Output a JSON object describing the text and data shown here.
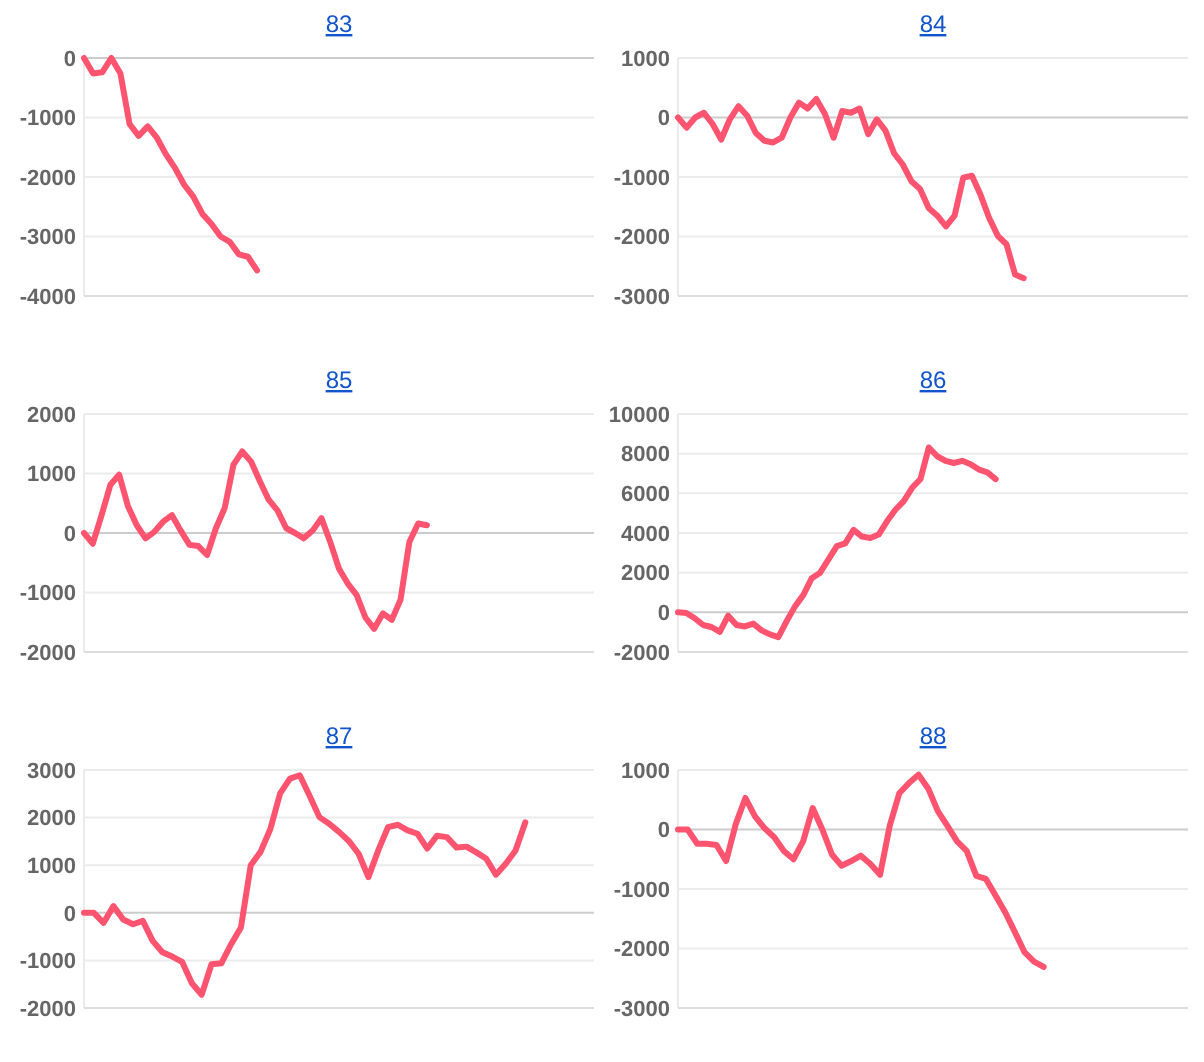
{
  "chart_data": [
    {
      "type": "line",
      "title": "83",
      "categories": [
        null,
        null,
        null,
        null,
        null,
        null,
        null,
        null,
        null,
        null,
        null,
        null,
        null,
        null,
        null,
        null,
        null,
        null,
        null,
        null,
        null,
        null,
        null,
        null,
        null,
        null,
        null,
        null,
        null,
        null,
        null,
        null,
        null,
        null,
        null,
        null,
        null,
        null,
        null,
        null,
        null,
        null,
        null,
        null,
        null,
        null,
        null,
        null,
        null,
        null,
        null,
        null,
        null,
        null,
        null,
        null,
        null
      ],
      "ylim": [
        -4000,
        0
      ],
      "yticks": [
        0,
        -1000,
        -2000,
        -3000,
        -4000
      ],
      "tick_labels": "y",
      "grid": "y",
      "series": [
        {
          "color": "#fe5470",
          "values": [
            0,
            -260,
            -240,
            0,
            -260,
            -1110,
            -1310,
            -1150,
            -1340,
            -1620,
            -1850,
            -2130,
            -2330,
            -2620,
            -2790,
            -3000,
            -3090,
            -3300,
            -3340,
            -3570,
            null,
            null,
            null,
            null,
            null,
            null,
            null,
            null,
            null,
            null,
            null,
            null,
            null,
            null,
            null,
            null,
            null,
            null,
            null,
            null,
            null,
            null,
            null,
            null,
            null,
            null,
            null,
            null,
            null,
            null,
            null,
            null,
            null,
            null,
            null,
            null,
            null
          ]
        }
      ]
    },
    {
      "type": "line",
      "title": "84",
      "categories": [
        null,
        null,
        null,
        null,
        null,
        null,
        null,
        null,
        null,
        null,
        null,
        null,
        null,
        null,
        null,
        null,
        null,
        null,
        null,
        null,
        null,
        null,
        null,
        null,
        null,
        null,
        null,
        null,
        null,
        null,
        null,
        null,
        null,
        null,
        null,
        null,
        null,
        null,
        null,
        null,
        null,
        null,
        null,
        null,
        null,
        null,
        null,
        null,
        null,
        null,
        null,
        null,
        null,
        null,
        null,
        null,
        null,
        null,
        null,
        null
      ],
      "ylim": [
        -3000,
        1000
      ],
      "yticks": [
        1000,
        0,
        -1000,
        -2000,
        -3000
      ],
      "tick_labels": "y",
      "grid": "y",
      "series": [
        {
          "color": "#fe5470",
          "values": [
            0,
            -170,
            0,
            80,
            -110,
            -370,
            -30,
            190,
            30,
            -260,
            -390,
            -420,
            -340,
            0,
            250,
            150,
            310,
            60,
            -340,
            110,
            80,
            150,
            -280,
            -30,
            -220,
            -600,
            -790,
            -1070,
            -1200,
            -1520,
            -1650,
            -1830,
            -1650,
            -1010,
            -980,
            -1300,
            -1690,
            -1990,
            -2130,
            -2640,
            -2700,
            null,
            null,
            null,
            null,
            null,
            null,
            null,
            null,
            null,
            null,
            null,
            null,
            null,
            null,
            null,
            null,
            null,
            null,
            null
          ]
        }
      ]
    },
    {
      "type": "line",
      "title": "85",
      "categories": [
        null,
        null,
        null,
        null,
        null,
        null,
        null,
        null,
        null,
        null,
        null,
        null,
        null,
        null,
        null,
        null,
        null,
        null,
        null,
        null,
        null,
        null,
        null,
        null,
        null,
        null,
        null,
        null,
        null,
        null,
        null,
        null,
        null,
        null,
        null,
        null,
        null,
        null,
        null,
        null,
        null,
        null,
        null,
        null,
        null,
        null,
        null,
        null,
        null,
        null,
        null,
        null,
        null,
        null,
        null,
        null,
        null,
        null,
        null
      ],
      "ylim": [
        -2000,
        2000
      ],
      "yticks": [
        2000,
        1000,
        0,
        -1000,
        -2000
      ],
      "tick_labels": "y",
      "grid": "y",
      "series": [
        {
          "color": "#fe5470",
          "values": [
            0,
            -180,
            300,
            810,
            980,
            450,
            130,
            -90,
            20,
            190,
            300,
            40,
            -200,
            -220,
            -370,
            80,
            420,
            1150,
            1370,
            1200,
            870,
            560,
            380,
            80,
            0,
            -90,
            40,
            250,
            -150,
            -600,
            -850,
            -1040,
            -1420,
            -1610,
            -1350,
            -1460,
            -1120,
            -150,
            160,
            130,
            null,
            null,
            null,
            null,
            null,
            null,
            null,
            null,
            null,
            null,
            null,
            null,
            null,
            null,
            null,
            null,
            null,
            null,
            null
          ]
        }
      ]
    },
    {
      "type": "line",
      "title": "86",
      "categories": [
        null,
        null,
        null,
        null,
        null,
        null,
        null,
        null,
        null,
        null,
        null,
        null,
        null,
        null,
        null,
        null,
        null,
        null,
        null,
        null,
        null,
        null,
        null,
        null,
        null,
        null,
        null,
        null,
        null,
        null,
        null,
        null,
        null,
        null,
        null,
        null,
        null,
        null,
        null,
        null,
        null,
        null,
        null,
        null,
        null,
        null,
        null,
        null,
        null,
        null,
        null,
        null,
        null,
        null,
        null,
        null,
        null,
        null,
        null,
        null,
        null,
        null
      ],
      "ylim": [
        -2000,
        10000
      ],
      "yticks": [
        10000,
        8000,
        6000,
        4000,
        2000,
        0,
        -2000
      ],
      "tick_labels": "y",
      "grid": "y",
      "series": [
        {
          "color": "#fe5470",
          "values": [
            0,
            -30,
            -300,
            -640,
            -740,
            -980,
            -170,
            -640,
            -710,
            -570,
            -910,
            -1110,
            -1250,
            -440,
            300,
            880,
            1720,
            2000,
            2670,
            3340,
            3480,
            4160,
            3820,
            3750,
            3920,
            4590,
            5170,
            5610,
            6280,
            6720,
            8310,
            7870,
            7640,
            7530,
            7640,
            7470,
            7200,
            7060,
            6720,
            null,
            null,
            null,
            null,
            null,
            null,
            null,
            null,
            null,
            null,
            null,
            null,
            null,
            null,
            null,
            null,
            null,
            null,
            null,
            null,
            null,
            null,
            null
          ]
        }
      ]
    },
    {
      "type": "line",
      "title": "87",
      "categories": [
        null,
        null,
        null,
        null,
        null,
        null,
        null,
        null,
        null,
        null,
        null,
        null,
        null,
        null,
        null,
        null,
        null,
        null,
        null,
        null,
        null,
        null,
        null,
        null,
        null,
        null,
        null,
        null,
        null,
        null,
        null,
        null,
        null,
        null,
        null,
        null,
        null,
        null,
        null,
        null,
        null,
        null,
        null,
        null,
        null,
        null,
        null,
        null,
        null,
        null,
        null,
        null,
        null
      ],
      "ylim": [
        -2000,
        3000
      ],
      "yticks": [
        3000,
        2000,
        1000,
        0,
        -1000,
        -2000
      ],
      "tick_labels": "y",
      "grid": "y",
      "series": [
        {
          "color": "#fe5470",
          "values": [
            0,
            0,
            -210,
            140,
            -140,
            -240,
            -170,
            -590,
            -830,
            -920,
            -1030,
            -1480,
            -1720,
            -1080,
            -1060,
            -660,
            -310,
            1000,
            1280,
            1760,
            2510,
            2820,
            2890,
            2460,
            2010,
            1870,
            1700,
            1510,
            1240,
            750,
            1310,
            1800,
            1850,
            1730,
            1660,
            1350,
            1620,
            1590,
            1370,
            1390,
            1270,
            1140,
            800,
            1030,
            1310,
            1900,
            null,
            null,
            null,
            null,
            null,
            null,
            null
          ]
        }
      ]
    },
    {
      "type": "line",
      "title": "88",
      "categories": [
        null,
        null,
        null,
        null,
        null,
        null,
        null,
        null,
        null,
        null,
        null,
        null,
        null,
        null,
        null,
        null,
        null,
        null,
        null,
        null,
        null,
        null,
        null,
        null,
        null,
        null,
        null,
        null,
        null,
        null,
        null,
        null,
        null,
        null,
        null,
        null,
        null,
        null,
        null,
        null,
        null,
        null,
        null,
        null,
        null,
        null,
        null,
        null,
        null,
        null,
        null,
        null,
        null,
        null
      ],
      "ylim": [
        -3000,
        1000
      ],
      "yticks": [
        1000,
        0,
        -1000,
        -2000,
        -3000
      ],
      "tick_labels": "y",
      "grid": "y",
      "series": [
        {
          "color": "#fe5470",
          "values": [
            0,
            0,
            -240,
            -240,
            -260,
            -530,
            90,
            530,
            220,
            20,
            -130,
            -360,
            -500,
            -200,
            360,
            0,
            -420,
            -610,
            -530,
            -440,
            -580,
            -760,
            60,
            610,
            780,
            920,
            690,
            310,
            60,
            -200,
            -360,
            -780,
            -830,
            -1110,
            -1390,
            -1720,
            -2060,
            -2220,
            -2310,
            null,
            null,
            null,
            null,
            null,
            null,
            null,
            null,
            null,
            null,
            null,
            null,
            null,
            null,
            null
          ]
        }
      ]
    }
  ]
}
